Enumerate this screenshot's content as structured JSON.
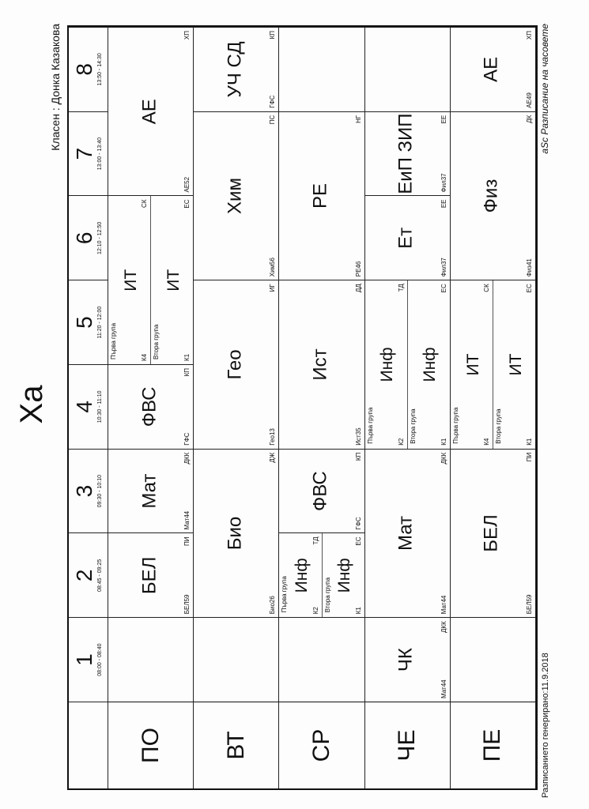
{
  "header": {
    "title": "Xa",
    "class_teacher": "Класен : Донка Казакова"
  },
  "footer": {
    "generated": "Разписанието генерирано:11.9.2018",
    "app": "aSc Разписание на часовете"
  },
  "periods": [
    {
      "num": "1",
      "time": "08:00 - 08:40"
    },
    {
      "num": "2",
      "time": "08:45 - 09:25"
    },
    {
      "num": "3",
      "time": "09:30 - 10:10"
    },
    {
      "num": "4",
      "time": "10:30 - 11:10"
    },
    {
      "num": "5",
      "time": "11:20 - 12:00"
    },
    {
      "num": "6",
      "time": "12:10 - 12:50"
    },
    {
      "num": "7",
      "time": "13:00 - 13:40"
    },
    {
      "num": "8",
      "time": "13:50 - 14:30"
    }
  ],
  "days": [
    "ПО",
    "ВТ",
    "СР",
    "ЧЕ",
    "ПЕ"
  ],
  "lessons": [
    {
      "day": 1,
      "period": 2,
      "span": 1,
      "parts": [
        {
          "subject": "БЕЛ",
          "room": "БЕЛ59",
          "teacher": "ПИ"
        }
      ]
    },
    {
      "day": 1,
      "period": 3,
      "span": 1,
      "parts": [
        {
          "subject": "Мат",
          "room": "Мат44",
          "teacher": "ДКК"
        }
      ]
    },
    {
      "day": 1,
      "period": 4,
      "span": 1,
      "parts": [
        {
          "subject": "ФВС",
          "room": "ГФС",
          "teacher": "КП"
        }
      ]
    },
    {
      "day": 1,
      "period": 5,
      "span": 2,
      "parts": [
        {
          "group": "Първа група",
          "subject": "ИТ",
          "room": "К4",
          "teacher": "СК"
        },
        {
          "group": "Втора група",
          "subject": "ИТ",
          "room": "К1",
          "teacher": "ЕС"
        }
      ]
    },
    {
      "day": 1,
      "period": 7,
      "span": 2,
      "parts": [
        {
          "subject": "АЕ",
          "room": "АЕ52",
          "teacher": "ХП"
        }
      ]
    },
    {
      "day": 2,
      "period": 2,
      "span": 2,
      "parts": [
        {
          "subject": "Био",
          "room": "Био26",
          "teacher": "ДЖ"
        }
      ]
    },
    {
      "day": 2,
      "period": 4,
      "span": 2,
      "parts": [
        {
          "subject": "Гео",
          "room": "Гео13",
          "teacher": "ИГ"
        }
      ]
    },
    {
      "day": 2,
      "period": 6,
      "span": 2,
      "parts": [
        {
          "subject": "Хим",
          "room": "Хим56",
          "teacher": "ПС"
        }
      ]
    },
    {
      "day": 2,
      "period": 8,
      "span": 1,
      "parts": [
        {
          "subject": "УЧ СД",
          "room": "ГФС",
          "teacher": "КП"
        }
      ]
    },
    {
      "day": 3,
      "period": 2,
      "span": 1,
      "parts": [
        {
          "group": "Първа група",
          "subject": "Инф",
          "room": "К2",
          "teacher": "ТД"
        },
        {
          "group": "Втора група",
          "subject": "Инф",
          "room": "К1",
          "teacher": "ЕС"
        }
      ]
    },
    {
      "day": 3,
      "period": 3,
      "span": 1,
      "parts": [
        {
          "subject": "ФВС",
          "room": "ГФС",
          "teacher": "КП"
        }
      ]
    },
    {
      "day": 3,
      "period": 4,
      "span": 2,
      "parts": [
        {
          "subject": "Ист",
          "room": "Ист35",
          "teacher": "ДД"
        }
      ]
    },
    {
      "day": 3,
      "period": 6,
      "span": 2,
      "parts": [
        {
          "subject": "РЕ",
          "room": "РЕ46",
          "teacher": "НГ"
        }
      ]
    },
    {
      "day": 4,
      "period": 1,
      "span": 1,
      "parts": [
        {
          "subject": "ЧК",
          "room": "Мат44",
          "teacher": "ДКК"
        }
      ]
    },
    {
      "day": 4,
      "period": 2,
      "span": 2,
      "parts": [
        {
          "subject": "Мат",
          "room": "Мат44",
          "teacher": "ДКК"
        }
      ]
    },
    {
      "day": 4,
      "period": 4,
      "span": 2,
      "parts": [
        {
          "group": "Първа група",
          "subject": "Инф",
          "room": "К2",
          "teacher": "ТД"
        },
        {
          "group": "Втора група",
          "subject": "Инф",
          "room": "К1",
          "teacher": "ЕС"
        }
      ]
    },
    {
      "day": 4,
      "period": 6,
      "span": 1,
      "parts": [
        {
          "subject": "Ет",
          "room": "Фил37",
          "teacher": "ЕЕ"
        }
      ]
    },
    {
      "day": 4,
      "period": 7,
      "span": 1,
      "parts": [
        {
          "subject": "ЕиП ЗИП",
          "room": "Фил37",
          "teacher": "ЕЕ"
        }
      ]
    },
    {
      "day": 5,
      "period": 2,
      "span": 2,
      "parts": [
        {
          "subject": "БЕЛ",
          "room": "БЕЛ59",
          "teacher": "ПИ"
        }
      ]
    },
    {
      "day": 5,
      "period": 4,
      "span": 2,
      "parts": [
        {
          "group": "Първа група",
          "subject": "ИТ",
          "room": "К4",
          "teacher": "СК"
        },
        {
          "group": "Втора група",
          "subject": "ИТ",
          "room": "К1",
          "teacher": "ЕС"
        }
      ]
    },
    {
      "day": 5,
      "period": 6,
      "span": 2,
      "parts": [
        {
          "subject": "Физ",
          "room": "Физ41",
          "teacher": "ДК"
        }
      ]
    },
    {
      "day": 5,
      "period": 8,
      "span": 1,
      "parts": [
        {
          "subject": "АЕ",
          "room": "АЕ49",
          "teacher": "ХП"
        }
      ]
    }
  ]
}
